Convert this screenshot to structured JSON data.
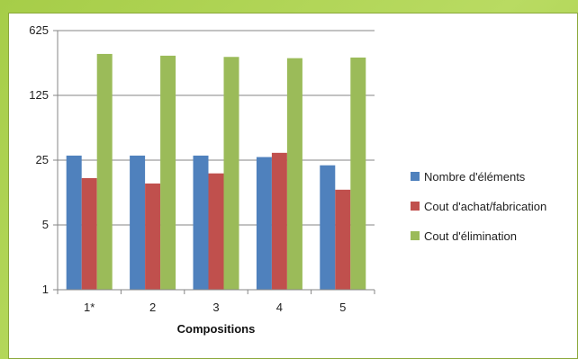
{
  "chart_data": {
    "type": "bar",
    "title": "",
    "xlabel": "Compositions",
    "ylabel": "",
    "yscale": "log",
    "log_base": 5,
    "ylim": [
      1,
      625
    ],
    "yticks": [
      1,
      5,
      25,
      125,
      625
    ],
    "ytick_labels": [
      "1",
      "5",
      "25",
      "125",
      "625"
    ],
    "grid": true,
    "legend_position": "right",
    "categories": [
      "1*",
      "2",
      "3",
      "4",
      "5"
    ],
    "series": [
      {
        "name": "Nombre d'éléments",
        "color": "#4f81bd",
        "values": [
          28,
          28,
          28,
          27,
          22
        ]
      },
      {
        "name": "Cout d'achat/fabrication",
        "color": "#c0504d",
        "values": [
          16,
          14,
          18,
          30,
          12
        ]
      },
      {
        "name": "Cout d'élimination",
        "color": "#9bbb59",
        "values": [
          350,
          335,
          325,
          315,
          320
        ]
      }
    ]
  }
}
